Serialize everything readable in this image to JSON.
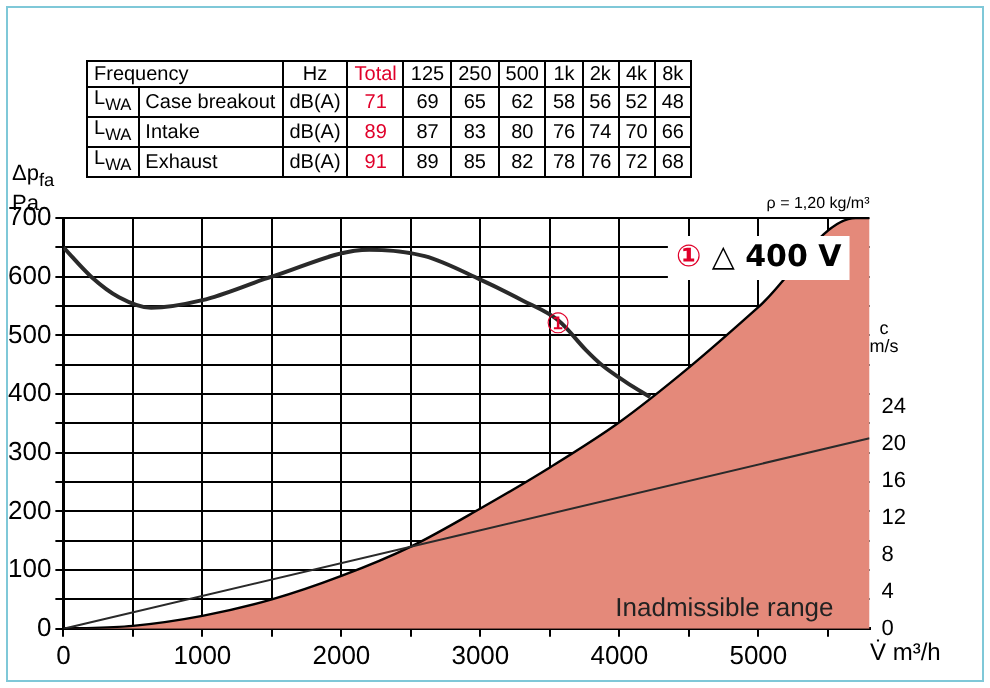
{
  "chart_data": [
    {
      "type": "other",
      "annotations": [
        "Frequency",
        "Hz",
        "Total",
        "125",
        "250",
        "500",
        "1k",
        "2k",
        "4k",
        "8k",
        "L$_{WA}$",
        "Case breakout",
        "dB(A)",
        "71",
        "69",
        "65",
        "62",
        "58",
        "56",
        "52",
        "48",
        "L$_{WA}$",
        "Intake",
        "dB(A)",
        "89",
        "87",
        "83",
        "80",
        "76",
        "74",
        "70",
        "66",
        "L$_{WA}$",
        "Exhaust",
        "dB(A)",
        "91",
        "89",
        "85",
        "82",
        "78",
        "76",
        "72",
        "68"
      ]
    },
    {
      "type": "line",
      "xlabel": "V̇  m³/h",
      "ylabel": "Δp$_{fa}$ Pa",
      "y2label": "c m/s",
      "xlim": [
        0,
        5800
      ],
      "xticks": [
        0,
        {
          "value": 500,
          "label": null
        },
        1000,
        {
          "value": 1500,
          "label": null
        },
        2000,
        {
          "value": 2500,
          "label": null
        },
        3000,
        {
          "value": 3500,
          "label": null
        },
        4000,
        {
          "value": 4500,
          "label": null
        },
        5000,
        {
          "value": 5500,
          "label": null
        }
      ],
      "ylim": [
        0,
        700
      ],
      "yticks": [
        0,
        {
          "value": 50,
          "label": null
        },
        100,
        {
          "value": 150,
          "label": null
        },
        200,
        {
          "value": 250,
          "label": null
        },
        300,
        {
          "value": 350,
          "label": null
        },
        400,
        {
          "value": 450,
          "label": null
        },
        500,
        {
          "value": 550,
          "label": null
        },
        600,
        {
          "value": 650,
          "label": null
        },
        700
      ],
      "y2lim": [
        0,
        44.4
      ],
      "y2ticks": [
        0,
        4,
        8,
        12,
        16,
        20,
        24
      ],
      "grid": true,
      "legend": false,
      "series": [
        {
          "type": "area",
          "color": "#e4897a",
          "x": [
            0,
            500,
            1000,
            1500,
            2000,
            2500,
            3000,
            3500,
            4000,
            4500,
            5000,
            5700,
            5800
          ],
          "values": [
            0,
            5,
            22,
            50,
            90,
            140,
            205,
            275,
            352,
            445,
            548,
            700,
            700
          ]
        },
        {
          "type": "line",
          "color": "#2a2a2a",
          "x": [
            0,
            200,
            400,
            631,
            1000,
            1500,
            2200,
            2600,
            3000,
            3300,
            3564,
            3760,
            3872,
            4050,
            4221
          ],
          "values": [
            650,
            600,
            565,
            547,
            560,
            600,
            646,
            635,
            595,
            560,
            525,
            475,
            450,
            420,
            395
          ]
        },
        {
          "type": "line",
          "axis": "y2",
          "color": "#2a2a2a",
          "x": [
            0,
            5800
          ],
          "values": [
            0,
            20.6
          ]
        }
      ],
      "annotations": [
        "ρ = 1,20 kg/m³",
        "① △ 400 V",
        {
          "text": "①",
          "x": 3760,
          "y": 475
        },
        "Inadmissible range"
      ]
    }
  ]
}
